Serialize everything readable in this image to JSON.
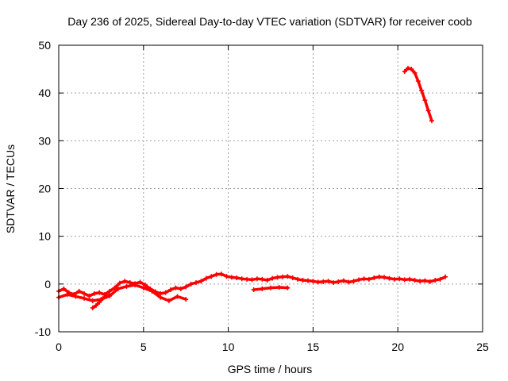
{
  "chart_data": {
    "type": "scatter",
    "title": "Day 236 of 2025, Sidereal Day-to-day VTEC variation (SDTVAR) for receiver coob",
    "xlabel": "GPS time / hours",
    "ylabel": "SDTVAR / TECUs",
    "xlim": [
      0,
      25
    ],
    "ylim": [
      -10,
      50
    ],
    "xticks": [
      "0",
      "5",
      "10",
      "15",
      "20",
      "25"
    ],
    "yticks": [
      "-10",
      "0",
      "10",
      "20",
      "30",
      "40",
      "50"
    ],
    "grid": true,
    "series": [
      {
        "name": "main-trace",
        "color": "#ff0000",
        "x": [
          0.0,
          0.3,
          0.6,
          0.9,
          1.2,
          1.5,
          1.8,
          2.1,
          2.4,
          2.7,
          3.0,
          3.3,
          3.6,
          3.9,
          4.2,
          4.5,
          4.8,
          5.1,
          5.4,
          5.7,
          6.0,
          6.3,
          6.6,
          6.9,
          7.2,
          7.5,
          7.8,
          8.1,
          8.4,
          8.7,
          9.0,
          9.3,
          9.6,
          9.9,
          10.2,
          10.5,
          10.8,
          11.1,
          11.4,
          11.7,
          12.0,
          12.3,
          12.6,
          12.9,
          13.2,
          13.5,
          13.8,
          14.1,
          14.4,
          14.7,
          15.0,
          15.3,
          15.6,
          15.9,
          16.2,
          16.5,
          16.8,
          17.1,
          17.4,
          17.7,
          18.0,
          18.3,
          18.6,
          18.9,
          19.2,
          19.5,
          19.8,
          20.1,
          20.4,
          20.7,
          21.0,
          21.3,
          21.6,
          21.9,
          22.2,
          22.5,
          22.8
        ],
        "y": [
          -1.5,
          -1.0,
          -1.8,
          -2.2,
          -1.5,
          -2.0,
          -2.5,
          -2.0,
          -1.8,
          -2.2,
          -1.5,
          -0.8,
          0.2,
          0.6,
          0.3,
          0.1,
          0.4,
          -0.2,
          -1.0,
          -1.6,
          -2.0,
          -1.8,
          -1.2,
          -0.8,
          -1.0,
          -0.6,
          0.0,
          0.3,
          0.6,
          1.2,
          1.6,
          2.0,
          2.1,
          1.6,
          1.4,
          1.3,
          1.1,
          1.0,
          0.9,
          1.1,
          1.0,
          0.8,
          1.2,
          1.4,
          1.5,
          1.6,
          1.3,
          1.0,
          0.8,
          0.7,
          0.6,
          0.4,
          0.5,
          0.6,
          0.3,
          0.5,
          0.7,
          0.4,
          0.6,
          0.9,
          1.1,
          1.0,
          1.3,
          1.5,
          1.4,
          1.2,
          1.0,
          1.1,
          0.9,
          1.0,
          0.8,
          0.6,
          0.7,
          0.5,
          0.8,
          1.0,
          1.5
        ]
      },
      {
        "name": "secondary-trace",
        "color": "#ff0000",
        "x": [
          0.0,
          0.5,
          1.0,
          1.5,
          2.0,
          2.5,
          3.0,
          3.5,
          4.0,
          4.5,
          5.0,
          5.5,
          6.0,
          6.5,
          7.0,
          7.5
        ],
        "y": [
          -2.8,
          -2.2,
          -2.6,
          -3.0,
          -3.5,
          -3.2,
          -2.5,
          -1.0,
          -0.5,
          -0.2,
          -0.8,
          -1.5,
          -2.8,
          -3.5,
          -2.6,
          -3.2
        ]
      },
      {
        "name": "dip-trace",
        "color": "#ff0000",
        "x": [
          2.0,
          2.2,
          2.4,
          2.6,
          2.8,
          3.0
        ],
        "y": [
          -5.0,
          -4.5,
          -3.8,
          -3.0,
          -2.6,
          -2.3
        ]
      },
      {
        "name": "offset-trace",
        "color": "#ff0000",
        "x": [
          11.5,
          12.0,
          12.5,
          13.0,
          13.5
        ],
        "y": [
          -1.2,
          -1.0,
          -0.8,
          -0.7,
          -0.8
        ]
      },
      {
        "name": "tail-trace",
        "color": "#ff0000",
        "x": [
          20.4,
          20.6,
          20.8,
          21.0,
          21.2,
          21.4,
          21.6,
          21.8,
          22.0
        ],
        "y": [
          44.5,
          45.2,
          45.0,
          44.2,
          42.5,
          40.5,
          38.5,
          36.3,
          34.2
        ]
      }
    ]
  }
}
